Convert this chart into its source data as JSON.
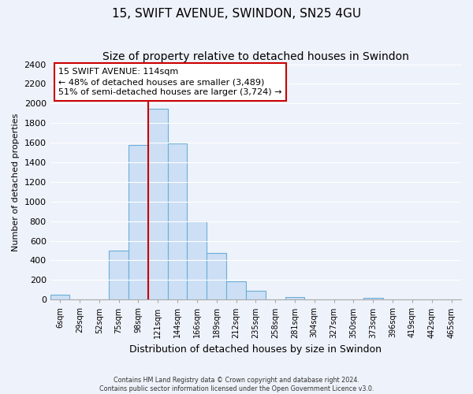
{
  "title": "15, SWIFT AVENUE, SWINDON, SN25 4GU",
  "subtitle": "Size of property relative to detached houses in Swindon",
  "xlabel": "Distribution of detached houses by size in Swindon",
  "ylabel": "Number of detached properties",
  "bar_labels": [
    "6sqm",
    "29sqm",
    "52sqm",
    "75sqm",
    "98sqm",
    "121sqm",
    "144sqm",
    "166sqm",
    "189sqm",
    "212sqm",
    "235sqm",
    "258sqm",
    "281sqm",
    "304sqm",
    "327sqm",
    "350sqm",
    "373sqm",
    "396sqm",
    "419sqm",
    "442sqm",
    "465sqm"
  ],
  "bar_heights": [
    50,
    0,
    0,
    500,
    1575,
    1950,
    1590,
    800,
    475,
    185,
    90,
    0,
    30,
    0,
    0,
    0,
    20,
    0,
    0,
    0,
    0
  ],
  "bar_color": "#ccdff5",
  "bar_edge_color": "#6baed6",
  "marker_label": "15 SWIFT AVENUE: 114sqm",
  "annotation_line1": "← 48% of detached houses are smaller (3,489)",
  "annotation_line2": "51% of semi-detached houses are larger (3,724) →",
  "marker_line_color": "#cc0000",
  "ylim": [
    0,
    2400
  ],
  "yticks": [
    0,
    200,
    400,
    600,
    800,
    1000,
    1200,
    1400,
    1600,
    1800,
    2000,
    2200,
    2400
  ],
  "footnote1": "Contains HM Land Registry data © Crown copyright and database right 2024.",
  "footnote2": "Contains public sector information licensed under the Open Government Licence v3.0.",
  "annotation_box_color": "#ffffff",
  "annotation_box_edge": "#cc0000",
  "bg_color": "#eef2fa",
  "grid_color": "#ffffff",
  "title_fontsize": 11,
  "subtitle_fontsize": 10,
  "ylabel_fontsize": 8,
  "xlabel_fontsize": 9
}
